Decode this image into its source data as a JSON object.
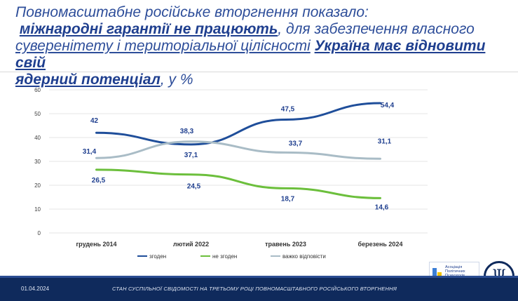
{
  "title": {
    "line1": "Повномасштабне російське вторгнення показало:",
    "hl1": "міжнародні гарантії не працюють",
    "mid1": ", для забезпечення власного",
    "mid2a": "суверенітету і територіальної цілісності",
    "mid2b": " ",
    "hl2a": "Україна має відновити свій",
    "hl2b": "ядерний потенціал",
    "tail": ", у %"
  },
  "footer": {
    "date": "01.04.2024",
    "caption": "СТАН СУСПІЛЬНОЇ СВІДОМОСТІ НА ТРЕТЬОМУ РОЦІ ПОВНОМАСШТАБНОГО РОСІЙСЬКОГО ВТОРГНЕННЯ"
  },
  "logos": {
    "apu_text": [
      "Асоціація",
      "Політичних",
      "Психологів",
      "України"
    ],
    "psy_glyph": "Ψ"
  },
  "colors": {
    "agree": "#1f4e9a",
    "disagree": "#6cbf3c",
    "hard": "#a9bcc6",
    "axis_text": "#404040",
    "grid": "#e6e6e6"
  },
  "chart_data": {
    "type": "line",
    "title": "",
    "categories": [
      "грудень 2014",
      "лютий 2022",
      "травень 2023",
      "березень 2024"
    ],
    "ylim": [
      0,
      60
    ],
    "yticks": [
      0,
      10,
      20,
      30,
      40,
      50,
      60
    ],
    "grid": true,
    "legend_position": "bottom",
    "series": [
      {
        "name": "згоден",
        "values": [
          42,
          37.1,
          47.5,
          54.4
        ],
        "labels": [
          "42",
          "37,1",
          "47,5",
          "54,4"
        ]
      },
      {
        "name": "не згоден",
        "values": [
          26.5,
          24.5,
          18.7,
          14.6
        ],
        "labels": [
          "26,5",
          "24,5",
          "18,7",
          "14,6"
        ]
      },
      {
        "name": "важко відповісти",
        "values": [
          31.4,
          38.3,
          33.7,
          31.1
        ],
        "labels": [
          "31,4",
          "38,3",
          "33,7",
          "31,1"
        ]
      }
    ]
  }
}
